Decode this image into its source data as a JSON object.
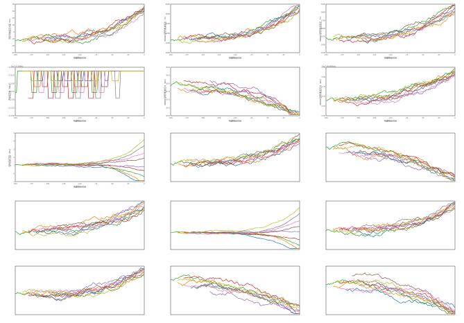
{
  "chart_data": [
    {
      "panel": "r1c1",
      "type": "line",
      "series_count": 9,
      "ylabel": "纯化剂前后压力差（Pa）",
      "xlabel": "到期剩余时间",
      "xticks": [
        "-200",
        "-175",
        "-150",
        "-125",
        "-100",
        "-75",
        "-50",
        "-25",
        "0"
      ],
      "yticks": [
        "-60",
        "-40",
        "-20",
        "0",
        "20",
        "40",
        "60",
        "80"
      ],
      "trend": "rise"
    },
    {
      "panel": "r1c2",
      "type": "line",
      "series_count": 9,
      "ylabel": "PB900吸附剂柱前温度（℃）",
      "xlabel": "到期剩余时间",
      "xticks": [
        "-200",
        "-175",
        "-150",
        "-125",
        "-100",
        "-75",
        "-50",
        "-25",
        "0"
      ],
      "yticks": [
        "3800",
        "4000",
        "4200",
        "4400",
        "4600",
        "4800"
      ],
      "trend": "rise"
    },
    {
      "panel": "r1c3",
      "type": "line",
      "series_count": 9,
      "ylabel": "PB900吸附剂柱后温度（℃）",
      "xlabel": "到期剩余时间",
      "xticks": [
        "-200",
        "-175",
        "-150",
        "-125",
        "-100",
        "-75",
        "-50",
        "-25",
        "0"
      ],
      "yticks": [
        "3300",
        "3400",
        "3500",
        "3600",
        "3700",
        "3800",
        "3900"
      ],
      "trend": "rise"
    },
    {
      "panel": "r2c1",
      "type": "line",
      "series_count": 9,
      "ylabel": "汽提塔压力（MPa）",
      "xlabel": "到期剩余时间",
      "top_note": "1e-2+7.64e1",
      "xticks": [
        "-200",
        "-175",
        "-150",
        "-125",
        "-100",
        "-75",
        "-50",
        "-25",
        "0"
      ],
      "yticks": [
        "0.1500",
        "0.1525",
        "0.1550",
        "0.1575",
        "0.1600",
        "0.1625",
        "0.1650"
      ],
      "trend": "step"
    },
    {
      "panel": "r2c2",
      "type": "line",
      "series_count": 9,
      "ylabel": "PB900吸附剂柱前压力（kPa）",
      "xlabel": "到期剩余时间",
      "xticks": [
        "-200",
        "-175",
        "-150",
        "-125",
        "-100",
        "-75",
        "-50",
        "-25",
        "0"
      ],
      "yticks": [
        "86.0",
        "86.5",
        "87.0",
        "87.5",
        "88.0",
        "88.5",
        "89.0"
      ],
      "trend": "fall"
    },
    {
      "panel": "r2c3",
      "type": "line",
      "series_count": 9,
      "ylabel": "PB900吸附剂柱后压力（kPa）",
      "xlabel": "到期剩余时间",
      "top_note": "1e-2+6.0605e1",
      "xticks": [
        "-200",
        "-175",
        "-150",
        "-125",
        "-100",
        "-75",
        "-50",
        "-25",
        "0"
      ],
      "yticks": [
        "0.60",
        "0.65",
        "0.70",
        "0.75",
        "0.80",
        "0.85"
      ],
      "trend": "rise"
    },
    {
      "panel": "r3c1",
      "type": "line",
      "series_count": 9,
      "ylabel": "吸附床层压差（kPa）",
      "xlabel": "到期剩余时间",
      "xticks": [
        "-200",
        "-175",
        "-150",
        "-125",
        "-100",
        "-75",
        "-50",
        "-25",
        "0"
      ],
      "yticks": [
        "-1",
        "0",
        "1",
        "2",
        "3",
        "4",
        "5"
      ],
      "trend": "fan"
    },
    {
      "panel": "r3c2",
      "type": "line",
      "series_count": 9,
      "ylabel": "",
      "xlabel": "",
      "trend": "rise"
    },
    {
      "panel": "r3c3",
      "type": "line",
      "series_count": 9,
      "ylabel": "",
      "xlabel": "",
      "trend": "fall"
    },
    {
      "panel": "r4c1",
      "type": "line",
      "series_count": 9,
      "ylabel": "",
      "xlabel": "",
      "trend": "rise"
    },
    {
      "panel": "r4c2",
      "type": "line",
      "series_count": 9,
      "ylabel": "",
      "xlabel": "",
      "trend": "fan"
    },
    {
      "panel": "r4c3",
      "type": "line",
      "series_count": 9,
      "ylabel": "",
      "xlabel": "",
      "trend": "rise"
    },
    {
      "panel": "r5c1",
      "type": "line",
      "series_count": 9,
      "ylabel": "",
      "xlabel": "",
      "trend": "rise"
    },
    {
      "panel": "r5c2",
      "type": "line",
      "series_count": 9,
      "ylabel": "",
      "xlabel": "",
      "trend": "fall"
    },
    {
      "panel": "r5c3",
      "type": "line",
      "series_count": 9,
      "ylabel": "",
      "xlabel": "",
      "trend": "fall"
    }
  ],
  "colors": [
    "#1f77b4",
    "#ff7f0e",
    "#2ca02c",
    "#d62728",
    "#9467bd",
    "#8c564b",
    "#e377c2",
    "#7f7f7f",
    "#bcbd22",
    "#17becf"
  ]
}
